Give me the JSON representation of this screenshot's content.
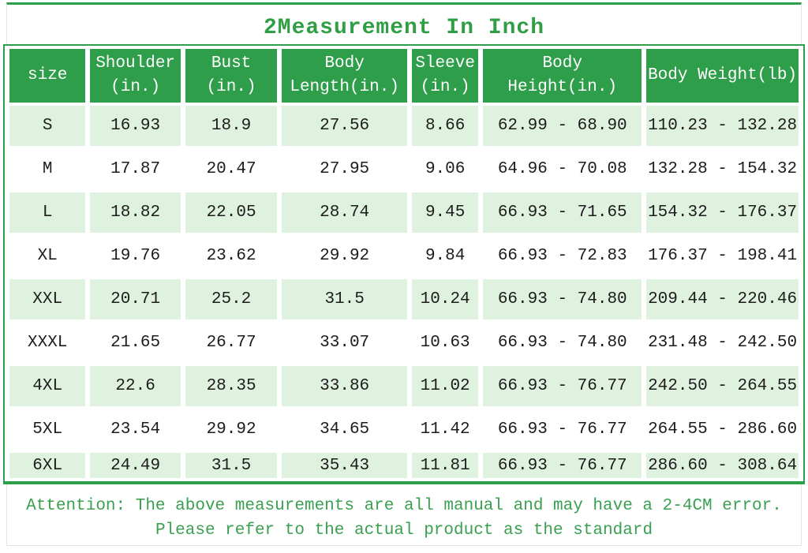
{
  "title": "2Measurement In Inch",
  "table": {
    "columns": [
      "size",
      "Shoulder\n(in.)",
      "Bust\n(in.)",
      "Body\nLength(in.)",
      "Sleeve\n(in.)",
      "Body\nHeight(in.)",
      "Body Weight(lb)"
    ],
    "rows": [
      [
        "S",
        "16.93",
        "18.9",
        "27.56",
        "8.66",
        "62.99 - 68.90",
        "110.23 - 132.28"
      ],
      [
        "M",
        "17.87",
        "20.47",
        "27.95",
        "9.06",
        "64.96 - 70.08",
        "132.28 - 154.32"
      ],
      [
        "L",
        "18.82",
        "22.05",
        "28.74",
        "9.45",
        "66.93 - 71.65",
        "154.32 - 176.37"
      ],
      [
        "XL",
        "19.76",
        "23.62",
        "29.92",
        "9.84",
        "66.93 - 72.83",
        "176.37 - 198.41"
      ],
      [
        "XXL",
        "20.71",
        "25.2",
        "31.5",
        "10.24",
        "66.93 - 74.80",
        "209.44 - 220.46"
      ],
      [
        "XXXL",
        "21.65",
        "26.77",
        "33.07",
        "10.63",
        "66.93 - 74.80",
        "231.48 - 242.50"
      ],
      [
        "4XL",
        "22.6",
        "28.35",
        "33.86",
        "11.02",
        "66.93 - 76.77",
        "242.50 - 264.55"
      ],
      [
        "5XL",
        "23.54",
        "29.92",
        "34.65",
        "11.42",
        "66.93 - 76.77",
        "264.55 - 286.60"
      ],
      [
        "6XL",
        "24.49",
        "31.5",
        "35.43",
        "11.81",
        "66.93 - 76.77",
        "286.60 - 308.64"
      ]
    ]
  },
  "footer": {
    "line1": "Attention: The above measurements are all manual and may have a 2-4CM error.",
    "line2": "Please refer to the actual product as the standard"
  },
  "colors": {
    "green": "#2f9e4a",
    "row_alt_bg": "#dff2e0",
    "title_text": "#2f9e45",
    "footer_text": "#3aa050",
    "cell_text": "#1c1c1c",
    "frame_gray": "#e3e3e3"
  }
}
